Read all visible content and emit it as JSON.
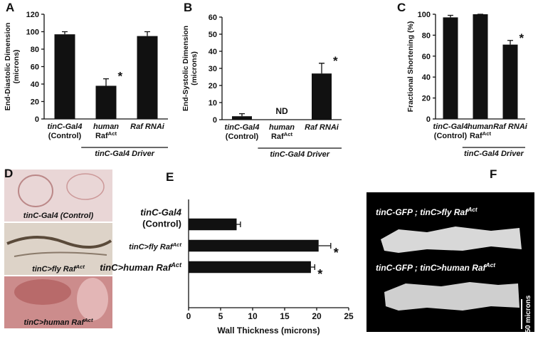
{
  "chart_data": [
    {
      "panel": "A",
      "type": "bar",
      "ylabel": [
        "End-Diastolic Dimension",
        "(microns)"
      ],
      "categories": [
        [
          "tinC-Gal4",
          "(Control)"
        ],
        [
          "human",
          {
            "text": "Raf",
            "sup": "Act"
          }
        ],
        [
          "Raf RNAi"
        ]
      ],
      "values": [
        97,
        38,
        95
      ],
      "errors": [
        3,
        8,
        5
      ],
      "significance": [
        null,
        "*",
        null
      ],
      "group_label": "tinC-Gal4 Driver",
      "color": "#111111",
      "ylim": [
        0,
        120
      ],
      "yticks": [
        0,
        20,
        40,
        60,
        80,
        100,
        120
      ]
    },
    {
      "panel": "B",
      "type": "bar",
      "ylabel": [
        "End-Systolic Dimension",
        "(microns)"
      ],
      "categories": [
        [
          "tinC-Gal4",
          "(Control)"
        ],
        [
          "human",
          {
            "text": "Raf",
            "sup": "Act"
          }
        ],
        [
          "Raf RNAi"
        ]
      ],
      "values": [
        2,
        null,
        27
      ],
      "errors": [
        1.5,
        null,
        6
      ],
      "significance": [
        null,
        null,
        "*"
      ],
      "notes": [
        null,
        "ND",
        null
      ],
      "group_label": "tinC-Gal4 Driver",
      "color": "#111111",
      "ylim": [
        0,
        60
      ],
      "yticks": [
        0,
        10,
        20,
        30,
        40,
        50,
        60
      ]
    },
    {
      "panel": "C",
      "type": "bar",
      "ylabel": [
        "Fractional Shortening (%)"
      ],
      "categories": [
        [
          "tinC-Gal4",
          "(Control)"
        ],
        [
          "human",
          {
            "text": "Raf",
            "sup": "Act"
          }
        ],
        [
          "Raf RNAi"
        ]
      ],
      "values": [
        97,
        100,
        71
      ],
      "errors": [
        2,
        0,
        4
      ],
      "significance": [
        null,
        null,
        "*"
      ],
      "group_label": "tinC-Gal4 Driver",
      "color": "#111111",
      "ylim": [
        0,
        100
      ],
      "yticks": [
        0,
        20,
        40,
        60,
        80,
        100
      ]
    },
    {
      "panel": "E",
      "type": "hbar",
      "xlabel": "Wall Thickness (microns)",
      "categories": [
        [
          "tinC-Gal4",
          "(Control)"
        ],
        [
          {
            "text": "tinC>fly Raf",
            "sup": "Act"
          }
        ],
        [
          {
            "text": "tinC>human Raf",
            "sup": "Act"
          }
        ]
      ],
      "values": [
        7.5,
        20.3,
        19.1
      ],
      "errors": [
        0.6,
        1.9,
        0.6
      ],
      "significance": [
        null,
        "*",
        "*"
      ],
      "color": "#111111",
      "xlim": [
        0,
        25
      ],
      "xticks": [
        0,
        5,
        10,
        15,
        20,
        25
      ]
    }
  ],
  "images": {
    "D": {
      "panel": "D",
      "captions": [
        "tinC-Gal4 (Control)",
        {
          "text": "tinC>fly Raf",
          "sup": "Act"
        },
        {
          "text": "tinC>human Raf",
          "sup": "Act"
        }
      ]
    },
    "F": {
      "panel": "F",
      "captions": [
        {
          "text": "tinC-GFP ; tinC>fly Raf",
          "sup": "Act"
        },
        {
          "text": "tinC-GFP ; tinC>human Raf",
          "sup": "Act"
        }
      ],
      "scale_label": "50 microns"
    }
  }
}
